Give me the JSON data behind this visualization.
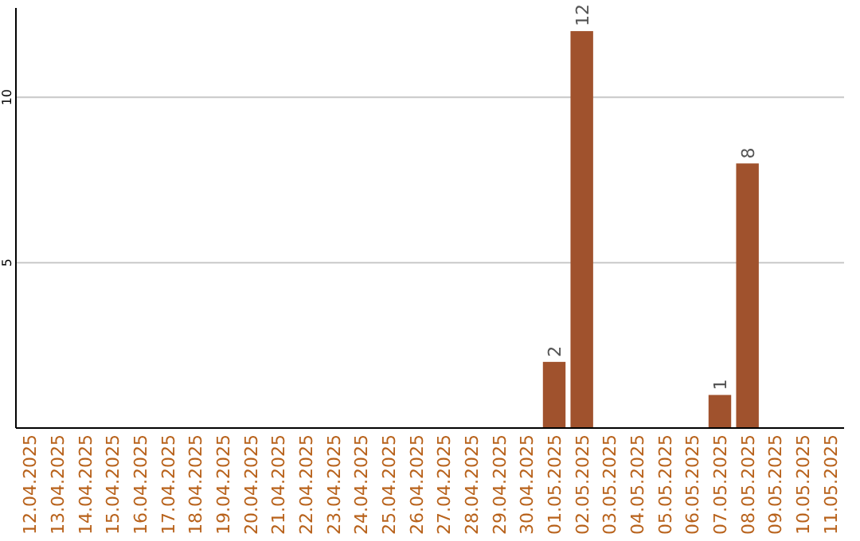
{
  "chart_data": {
    "type": "bar",
    "categories": [
      "12.04.2025",
      "13.04.2025",
      "14.04.2025",
      "15.04.2025",
      "16.04.2025",
      "17.04.2025",
      "18.04.2025",
      "19.04.2025",
      "20.04.2025",
      "21.04.2025",
      "22.04.2025",
      "23.04.2025",
      "24.04.2025",
      "25.04.2025",
      "26.04.2025",
      "27.04.2025",
      "28.04.2025",
      "29.04.2025",
      "30.04.2025",
      "01.05.2025",
      "02.05.2025",
      "03.05.2025",
      "04.05.2025",
      "05.05.2025",
      "06.05.2025",
      "07.05.2025",
      "08.05.2025",
      "09.05.2025",
      "10.05.2025",
      "11.05.2025"
    ],
    "values": [
      0,
      0,
      0,
      0,
      0,
      0,
      0,
      0,
      0,
      0,
      0,
      0,
      0,
      0,
      0,
      0,
      0,
      0,
      0,
      2,
      12,
      0,
      0,
      0,
      0,
      1,
      8,
      0,
      0,
      0
    ],
    "value_labels": [
      null,
      null,
      null,
      null,
      null,
      null,
      null,
      null,
      null,
      null,
      null,
      null,
      null,
      null,
      null,
      null,
      null,
      null,
      null,
      "2",
      "12",
      null,
      null,
      null,
      null,
      "1",
      "8",
      null,
      null,
      null
    ],
    "color": "#a0522d",
    "ylim": [
      0,
      12.7
    ],
    "yticks": [
      5,
      10
    ],
    "grid": "y"
  }
}
